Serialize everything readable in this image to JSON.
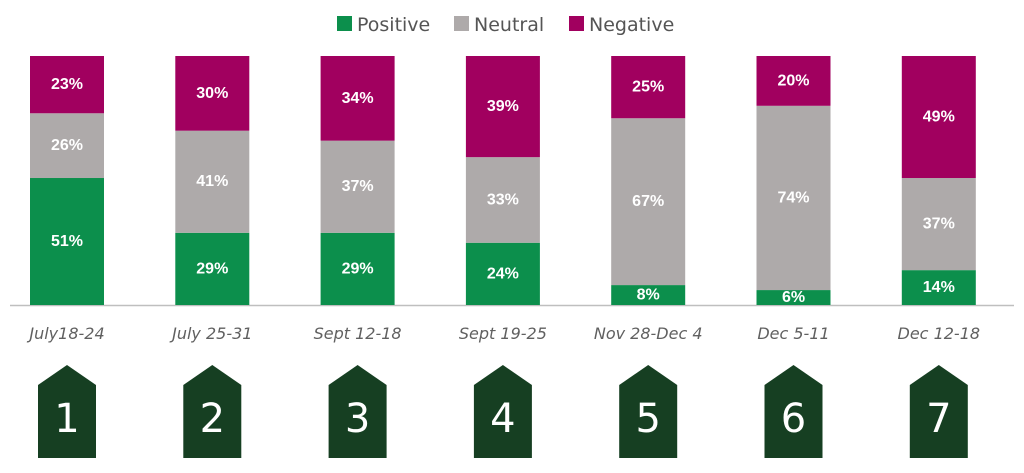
{
  "legend": {
    "positive": "Positive",
    "neutral": "Neutral",
    "negative": "Negative"
  },
  "colors": {
    "positive": "#0c8f4c",
    "neutral": "#aeaaaa",
    "negative": "#a1005f",
    "badge": "#163f22",
    "baseline": "#bfbfbf"
  },
  "chart_data": {
    "type": "bar",
    "stacked": true,
    "categories": [
      "July18-24",
      "July 25-31",
      "Sept 12-18",
      "Sept 19-25",
      "Nov 28-Dec 4",
      "Dec 5-11",
      "Dec 12-18"
    ],
    "series": [
      {
        "name": "Positive",
        "values": [
          51,
          29,
          29,
          24,
          8,
          6,
          14
        ]
      },
      {
        "name": "Neutral",
        "values": [
          26,
          41,
          37,
          33,
          67,
          74,
          37
        ]
      },
      {
        "name": "Negative",
        "values": [
          23,
          30,
          34,
          39,
          25,
          20,
          49
        ]
      }
    ],
    "value_suffix": "%",
    "legend_position": "top-center",
    "grid": false,
    "badges": [
      "1",
      "2",
      "3",
      "4",
      "5",
      "6",
      "7"
    ]
  }
}
